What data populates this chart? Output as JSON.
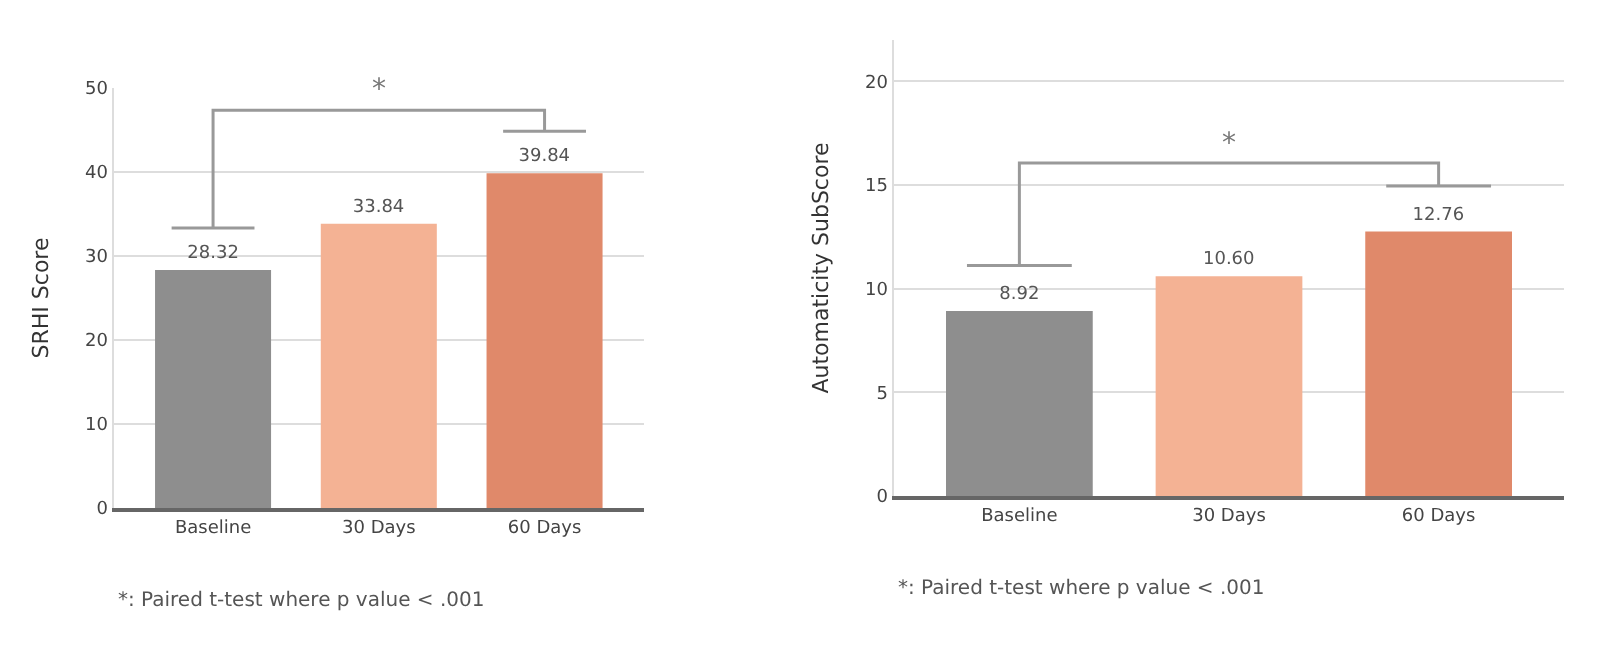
{
  "chart_data": [
    {
      "type": "bar",
      "ylabel": "SRHI Score",
      "categories": [
        "Baseline",
        "30 Days",
        "60 Days"
      ],
      "values": [
        28.32,
        33.84,
        39.84
      ],
      "colors": [
        "#8e8e8e",
        "#f4b294",
        "#e0896a"
      ],
      "value_labels": [
        "28.32",
        "33.84",
        "39.84"
      ],
      "ylim": [
        0,
        50
      ],
      "yticks": [
        0,
        10,
        20,
        30,
        40,
        50
      ],
      "grid": "y",
      "annotations": [
        "*",
        "*: Paired t-test where p value < .001"
      ]
    },
    {
      "type": "bar",
      "ylabel": "Automaticity SubScore",
      "categories": [
        "Baseline",
        "30 Days",
        "60 Days"
      ],
      "values": [
        8.92,
        10.6,
        12.76
      ],
      "colors": [
        "#8e8e8e",
        "#f4b294",
        "#e0896a"
      ],
      "value_labels": [
        "8.92",
        "10.60",
        "12.76"
      ],
      "ylim": [
        0,
        22
      ],
      "yticks": [
        0,
        5,
        10,
        15,
        20
      ],
      "grid": "y",
      "annotations": [
        "*",
        "*: Paired t-test where p value < .001"
      ]
    }
  ]
}
